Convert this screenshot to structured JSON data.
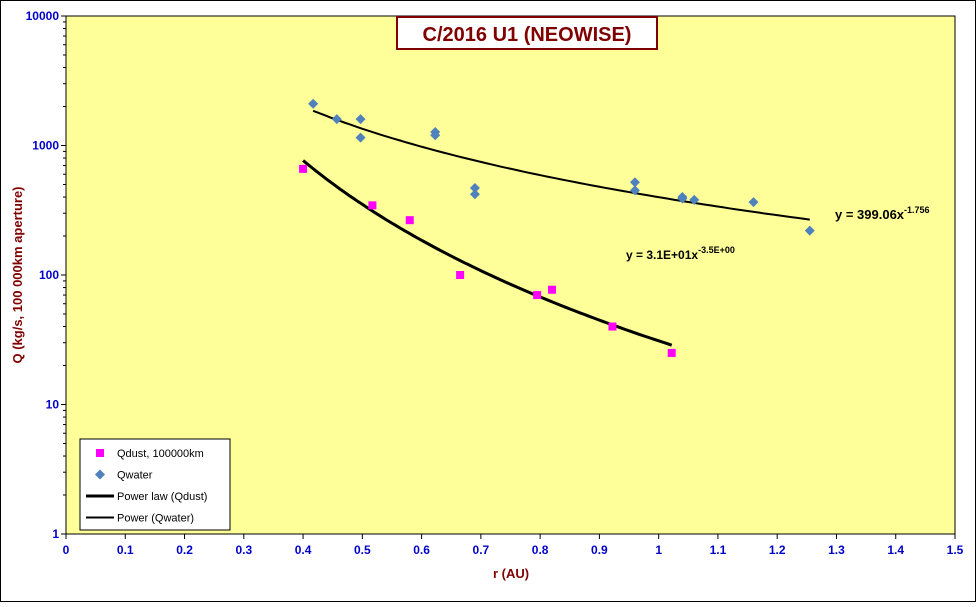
{
  "chart_data": {
    "type": "scatter",
    "title": "C/2016 U1 (NEOWISE)",
    "xlabel": "r (AU)",
    "ylabel": "Q (kg/s, 100 000km aperture)",
    "xlim": [
      0,
      1.5
    ],
    "ylim": [
      1,
      10000
    ],
    "yscale": "log",
    "x_ticks": [
      "0",
      "0.1",
      "0.2",
      "0.3",
      "0.4",
      "0.5",
      "0.6",
      "0.7",
      "0.8",
      "0.9",
      "1",
      "1.1",
      "1.2",
      "1.3",
      "1.4",
      "1.5"
    ],
    "y_ticks": [
      "1",
      "10",
      "100",
      "1000",
      "10000"
    ],
    "grid": false,
    "legend_position": "bottom-left",
    "colors": {
      "plot_bg": "#ffff99",
      "frame": "#000000",
      "qdust": "#ff00ff",
      "qwater": "#4f81bd",
      "tick_label": "#0000cc",
      "axis_title": "#800000",
      "title_border": "#800000",
      "title_text": "#800000",
      "fit_line": "#000000"
    },
    "series": [
      {
        "name": "Qdust, 100000km",
        "marker": "square",
        "color": "#ff00ff",
        "points": [
          [
            0.4,
            660
          ],
          [
            0.517,
            345
          ],
          [
            0.58,
            265
          ],
          [
            0.665,
            100
          ],
          [
            0.795,
            70
          ],
          [
            0.82,
            77
          ],
          [
            0.922,
            40
          ],
          [
            1.022,
            25
          ]
        ]
      },
      {
        "name": "Qwater",
        "marker": "diamond",
        "color": "#4f81bd",
        "points": [
          [
            0.417,
            2100
          ],
          [
            0.457,
            1600
          ],
          [
            0.497,
            1600
          ],
          [
            0.497,
            1150
          ],
          [
            0.623,
            1270
          ],
          [
            0.623,
            1200
          ],
          [
            0.69,
            470
          ],
          [
            0.69,
            420
          ],
          [
            0.96,
            520
          ],
          [
            0.96,
            450
          ],
          [
            1.04,
            400
          ],
          [
            1.04,
            390
          ],
          [
            1.06,
            380
          ],
          [
            1.16,
            365
          ],
          [
            1.255,
            220
          ]
        ]
      }
    ],
    "fits": [
      {
        "name": "Power law (Qdust)",
        "coef": 31.0,
        "exp": -3.5,
        "x_range": [
          0.4,
          1.022
        ],
        "width": 3,
        "label_base": "y = 3.1E+01x",
        "label_sup": "-3.5E+00"
      },
      {
        "name": "Power (Qwater)",
        "coef": 399.06,
        "exp": -1.756,
        "x_range": [
          0.417,
          1.255
        ],
        "width": 2,
        "label_base": "y = 399.06x",
        "label_sup": "-1.756"
      }
    ]
  }
}
